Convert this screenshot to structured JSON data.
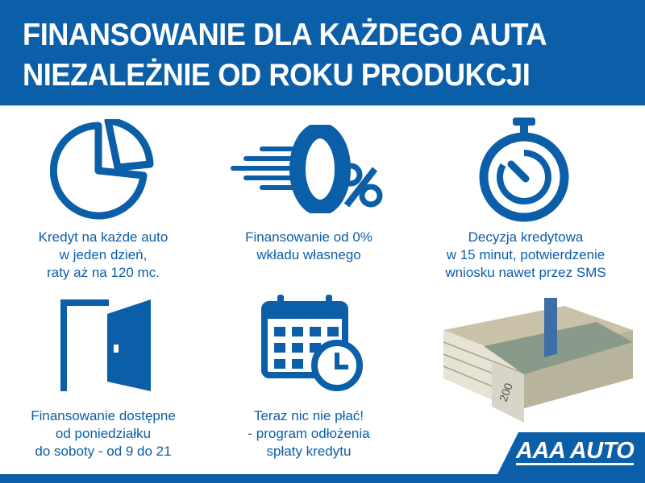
{
  "header": {
    "line1": "FINANSOWANIE DLA KAŻDEGO AUTA",
    "line2": "NIEZALEŻNIE OD ROKU PRODUKCJI"
  },
  "features": [
    {
      "icon": "pie-chart-icon",
      "lines": [
        "Kredyt na każde auto",
        "w jeden dzień,",
        "raty aż na 120 mc."
      ]
    },
    {
      "icon": "zero-percent-icon",
      "lines": [
        "Finansowanie od 0%",
        "wkładu własnego"
      ]
    },
    {
      "icon": "stopwatch-icon",
      "lines": [
        "Decyzja kredytowa",
        "w 15 minut, potwierdzenie",
        "wniosku nawet przez SMS"
      ]
    },
    {
      "icon": "door-icon",
      "lines": [
        "Finansowanie dostępne",
        "od poniedziałku",
        "do soboty - od 9 do 21"
      ]
    },
    {
      "icon": "calendar-clock-icon",
      "lines": [
        "Teraz nic nie płać!",
        "- program odłożenia",
        "spłaty kredytu"
      ]
    }
  ],
  "logo": {
    "text": "AAA AUTO"
  },
  "colors": {
    "brand": "#0b5ea8"
  }
}
